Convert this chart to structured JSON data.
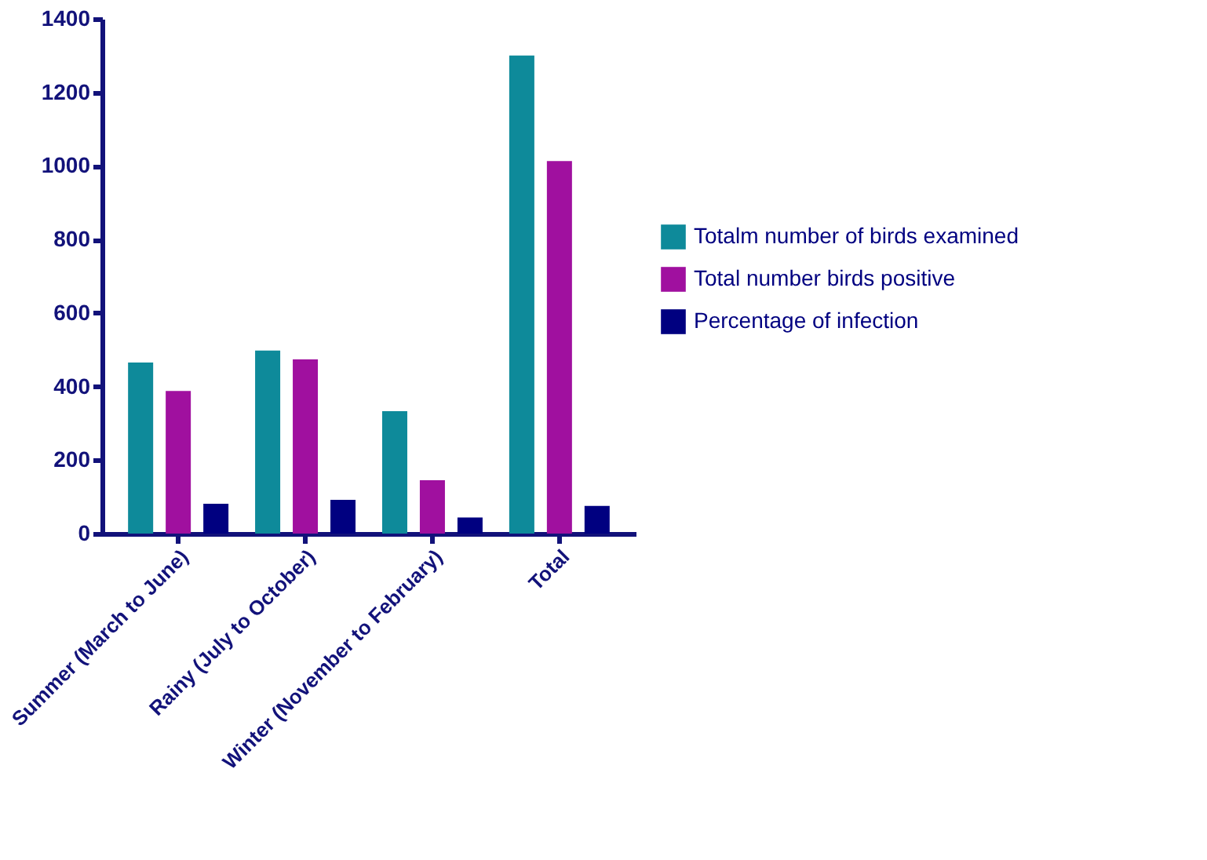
{
  "chart_data": {
    "type": "bar",
    "categories": [
      "Summer (March to June)",
      "Rainy (July to October)",
      "Winter (November to February)",
      "Total"
    ],
    "series": [
      {
        "name": "Totalm number of birds examined",
        "color": "#0e8a9a",
        "values": [
          465,
          498,
          333,
          1300
        ]
      },
      {
        "name": "Total number birds positive",
        "color": "#a0109f",
        "values": [
          388,
          474,
          145,
          1013
        ]
      },
      {
        "name": "Percentage of infection",
        "color": "#000080",
        "values": [
          81,
          92,
          44,
          75
        ]
      }
    ],
    "ylim": [
      0,
      1400
    ],
    "yticks": [
      0,
      200,
      400,
      600,
      800,
      1000,
      1200,
      1400
    ],
    "grid": false,
    "legend": "right"
  }
}
